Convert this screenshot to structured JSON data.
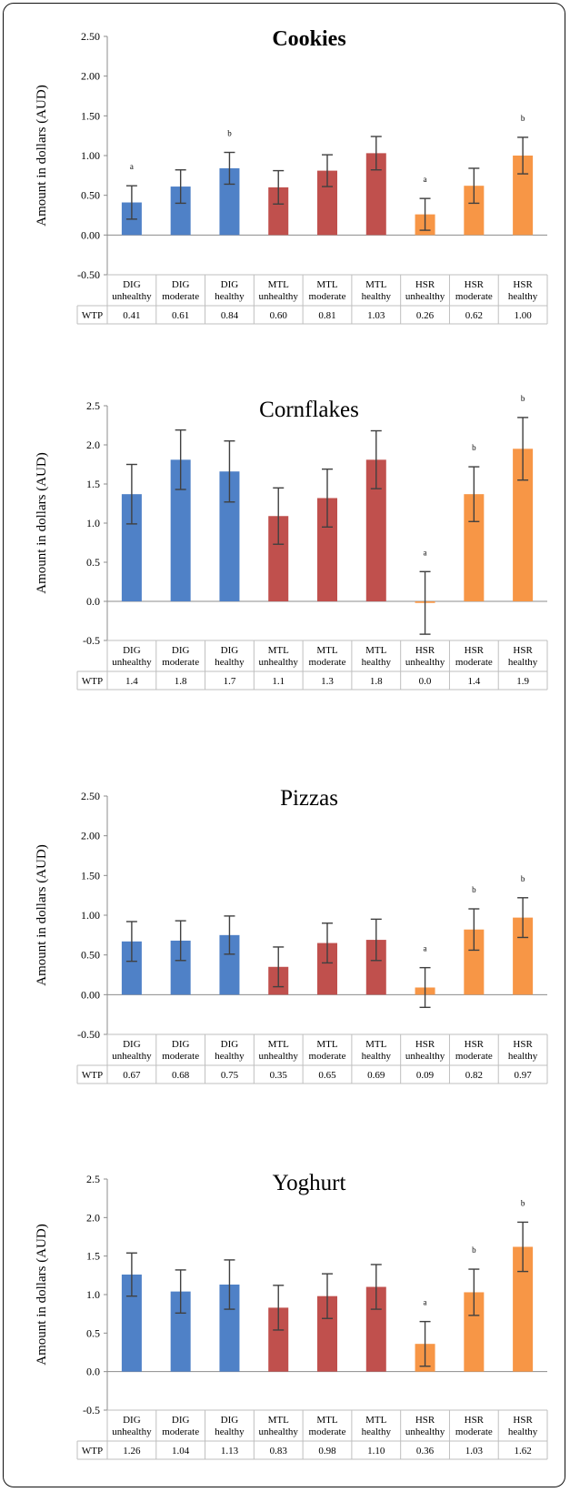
{
  "colors": {
    "DIG": "#4f81c7",
    "MTL": "#c0504d",
    "HSR": "#f79646",
    "error_bar": "#404040",
    "axis": "#8c8c8c",
    "table_border": "#bfbfbf"
  },
  "table_row_label": "WTP",
  "chart_data": [
    {
      "type": "bar",
      "title": "Cookies",
      "title_bold": true,
      "ylabel": "Amount in dollars (AUD)",
      "ylim": [
        -0.5,
        2.5
      ],
      "yticks": [
        "-0.50",
        "0.00",
        "0.50",
        "1.00",
        "1.50",
        "2.00",
        "2.50"
      ],
      "categories": [
        [
          "DIG",
          "unhealthy"
        ],
        [
          "DIG",
          "moderate"
        ],
        [
          "DIG",
          "healthy"
        ],
        [
          "MTL",
          "unhealthy"
        ],
        [
          "MTL",
          "moderate"
        ],
        [
          "MTL",
          "healthy"
        ],
        [
          "HSR",
          "unhealthy"
        ],
        [
          "HSR",
          "moderate"
        ],
        [
          "HSR",
          "healthy"
        ]
      ],
      "values": [
        0.41,
        0.61,
        0.84,
        0.6,
        0.81,
        1.03,
        0.26,
        0.62,
        1.0
      ],
      "error": [
        0.21,
        0.21,
        0.2,
        0.21,
        0.2,
        0.21,
        0.2,
        0.22,
        0.23
      ],
      "wtp_labels": [
        "0.41",
        "0.61",
        "0.84",
        "0.60",
        "0.81",
        "1.03",
        "0.26",
        "0.62",
        "1.00"
      ],
      "annotations": [
        "a",
        "",
        "b",
        "",
        "",
        "",
        "a",
        "",
        "b"
      ]
    },
    {
      "type": "bar",
      "title": "Cornflakes",
      "title_bold": false,
      "ylabel": "Amount in dollars (AUD)",
      "ylim": [
        -0.5,
        2.5
      ],
      "yticks": [
        "-0.5",
        "0.0",
        "0.5",
        "1.0",
        "1.5",
        "2.0",
        "2.5"
      ],
      "categories": [
        [
          "DIG",
          "unhealthy"
        ],
        [
          "DIG",
          "moderate"
        ],
        [
          "DIG",
          "healthy"
        ],
        [
          "MTL",
          "unhealthy"
        ],
        [
          "MTL",
          "moderate"
        ],
        [
          "MTL",
          "healthy"
        ],
        [
          "HSR",
          "unhealthy"
        ],
        [
          "HSR",
          "moderate"
        ],
        [
          "HSR",
          "healthy"
        ]
      ],
      "values": [
        1.37,
        1.81,
        1.66,
        1.09,
        1.32,
        1.81,
        -0.02,
        1.37,
        1.95
      ],
      "error": [
        0.38,
        0.38,
        0.39,
        0.36,
        0.37,
        0.37,
        0.4,
        0.35,
        0.4
      ],
      "wtp_labels": [
        "1.4",
        "1.8",
        "1.7",
        "1.1",
        "1.3",
        "1.8",
        "0.0",
        "1.4",
        "1.9"
      ],
      "annotations": [
        "",
        "",
        "",
        "",
        "",
        "",
        "a",
        "b",
        "b"
      ]
    },
    {
      "type": "bar",
      "title": "Pizzas",
      "title_bold": false,
      "ylabel": "Amount in dollars (AUD)",
      "ylim": [
        -0.5,
        2.5
      ],
      "yticks": [
        "-0.50",
        "0.00",
        "0.50",
        "1.00",
        "1.50",
        "2.00",
        "2.50"
      ],
      "categories": [
        [
          "DIG",
          "unhealthy"
        ],
        [
          "DIG",
          "moderate"
        ],
        [
          "DIG",
          "healthy"
        ],
        [
          "MTL",
          "unhealthy"
        ],
        [
          "MTL",
          "moderate"
        ],
        [
          "MTL",
          "healthy"
        ],
        [
          "HSR",
          "unhealthy"
        ],
        [
          "HSR",
          "moderate"
        ],
        [
          "HSR",
          "healthy"
        ]
      ],
      "values": [
        0.67,
        0.68,
        0.75,
        0.35,
        0.65,
        0.69,
        0.09,
        0.82,
        0.97
      ],
      "error": [
        0.25,
        0.25,
        0.24,
        0.25,
        0.25,
        0.26,
        0.25,
        0.26,
        0.25
      ],
      "wtp_labels": [
        "0.67",
        "0.68",
        "0.75",
        "0.35",
        "0.65",
        "0.69",
        "0.09",
        "0.82",
        "0.97"
      ],
      "annotations": [
        "",
        "",
        "",
        "",
        "",
        "",
        "a",
        "b",
        "b"
      ]
    },
    {
      "type": "bar",
      "title": "Yoghurt",
      "title_bold": false,
      "ylabel": "Amount in dollars (AUD)",
      "ylim": [
        -0.5,
        2.5
      ],
      "yticks": [
        "-0.5",
        "0.0",
        "0.5",
        "1.0",
        "1.5",
        "2.0",
        "2.5"
      ],
      "categories": [
        [
          "DIG",
          "unhealthy"
        ],
        [
          "DIG",
          "moderate"
        ],
        [
          "DIG",
          "healthy"
        ],
        [
          "MTL",
          "unhealthy"
        ],
        [
          "MTL",
          "moderate"
        ],
        [
          "MTL",
          "healthy"
        ],
        [
          "HSR",
          "unhealthy"
        ],
        [
          "HSR",
          "moderate"
        ],
        [
          "HSR",
          "healthy"
        ]
      ],
      "values": [
        1.26,
        1.04,
        1.13,
        0.83,
        0.98,
        1.1,
        0.36,
        1.03,
        1.62
      ],
      "error": [
        0.28,
        0.28,
        0.32,
        0.29,
        0.29,
        0.29,
        0.29,
        0.3,
        0.32
      ],
      "wtp_labels": [
        "1.26",
        "1.04",
        "1.13",
        "0.83",
        "0.98",
        "1.10",
        "0.36",
        "1.03",
        "1.62"
      ],
      "annotations": [
        "",
        "",
        "",
        "",
        "",
        "",
        "a",
        "b",
        "b"
      ]
    }
  ]
}
